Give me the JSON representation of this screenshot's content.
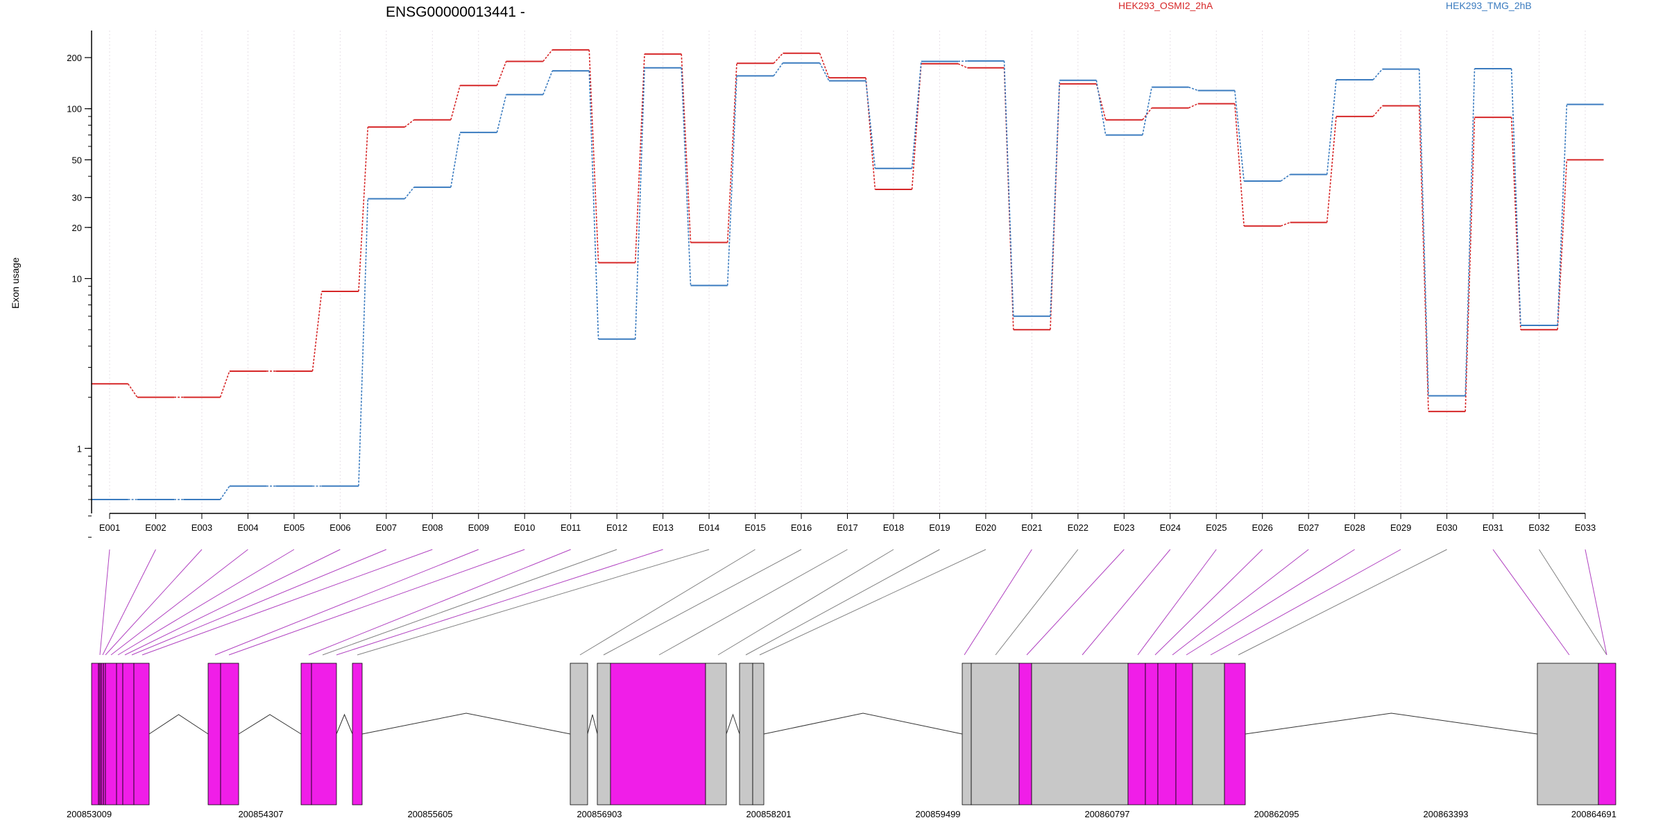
{
  "chart_data": {
    "type": "line",
    "title": "ENSG00000013441 -",
    "ylabel": "Exon usage",
    "xlabel": "",
    "y_scale": "log",
    "ylim": [
      0.28,
      300
    ],
    "y_ticks": [
      1,
      10,
      20,
      30,
      50,
      100,
      200
    ],
    "grid": "vertical dotted lines at each exon",
    "legend_position": "top-right",
    "categories": [
      "E001",
      "E002",
      "E003",
      "E004",
      "E005",
      "E006",
      "E007",
      "E008",
      "E009",
      "E010",
      "E011",
      "E012",
      "E013",
      "E014",
      "E015",
      "E016",
      "E017",
      "E018",
      "E019",
      "E020",
      "E021",
      "E022",
      "E023",
      "E024",
      "E025",
      "E026",
      "E027",
      "E028",
      "E029",
      "E030",
      "E031",
      "E032",
      "E033"
    ],
    "series": [
      {
        "name": "HEK293_OSMI2_2hA",
        "color": "#d62728",
        "values": [
          2.4,
          2.0,
          2.0,
          2.85,
          2.85,
          8.4,
          78,
          86,
          137,
          190,
          222,
          12.4,
          210,
          16.3,
          185,
          212,
          152,
          33.5,
          184,
          174,
          5.0,
          140,
          86,
          101,
          107,
          20.4,
          21.4,
          90,
          104,
          1.65,
          89,
          5.0,
          50
        ]
      },
      {
        "name": "HEK293_TMG_2hB",
        "color": "#3a7bbf",
        "values": [
          0.5,
          0.5,
          0.5,
          0.6,
          0.6,
          0.6,
          29.5,
          34.5,
          72.5,
          121,
          167,
          4.4,
          174,
          9.1,
          156,
          186,
          146,
          44.5,
          190,
          191,
          6.0,
          147,
          70,
          134,
          128,
          37.5,
          41,
          148,
          171,
          2.04,
          172,
          5.3,
          106
        ]
      }
    ],
    "gene_model": {
      "coordinate_labels": [
        "200853009",
        "200854307",
        "200855605",
        "200856903",
        "200858201",
        "200859499",
        "200860797",
        "200862095",
        "200863393",
        "200864691"
      ],
      "colors": {
        "tested_exon": "#f01ee8",
        "other_exon": "#c8c8c8",
        "intron_line": "#333333"
      },
      "exons_tested_flags": [
        true,
        true,
        true,
        true,
        true,
        true,
        true,
        true,
        true,
        true,
        true,
        false,
        true,
        false,
        false,
        false,
        false,
        false,
        false,
        false,
        true,
        false,
        true,
        true,
        true,
        true,
        true,
        true,
        true,
        false,
        true,
        false,
        true
      ]
    }
  }
}
